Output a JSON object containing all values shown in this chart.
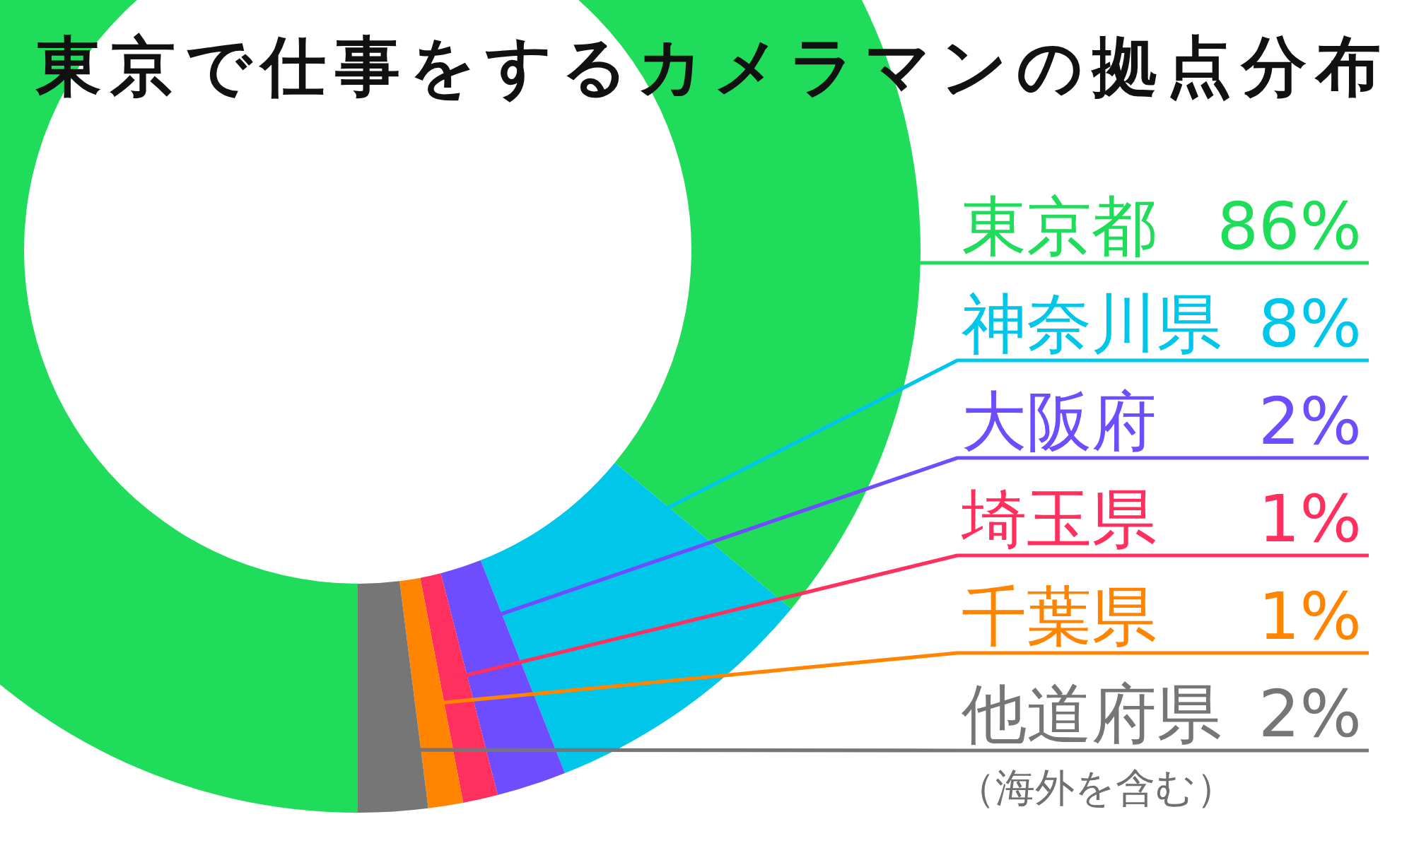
{
  "chart_data": {
    "type": "donut",
    "title": "東京で仕事をするカメラマンの拠点分布",
    "categories": [
      "東京都",
      "神奈川県",
      "大阪府",
      "埼玉県",
      "千葉県",
      "他道府県"
    ],
    "values": [
      86,
      8,
      2,
      1,
      1,
      2
    ],
    "value_labels": [
      "86%",
      "8%",
      "2%",
      "1%",
      "1%",
      "2%"
    ],
    "colors": [
      "#1fdc5a",
      "#00c6ea",
      "#6e4dff",
      "#ff2f5e",
      "#ff8400",
      "#767676"
    ],
    "annotations": [
      "（海外を含む）"
    ]
  }
}
